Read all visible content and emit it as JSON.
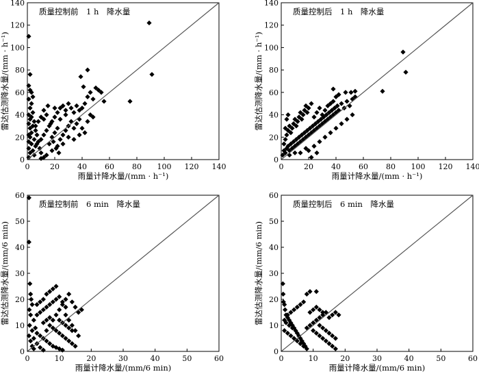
{
  "chart_data": [
    {
      "type": "scatter",
      "title": "质量控制前　1 h　降水量",
      "xlabel": "雨量计降水量/(mm · h⁻¹)",
      "ylabel": "雷达估测降水量/(mm · h⁻¹)",
      "xlim": [
        0,
        140
      ],
      "ylim": [
        0,
        140
      ],
      "xticks": [
        "0",
        "20",
        "40",
        "60",
        "80",
        "100",
        "120",
        "140"
      ],
      "yticks": [
        "0",
        "20",
        "40",
        "60",
        "80",
        "100",
        "120",
        "140"
      ],
      "reference_line": "y = x",
      "points": [
        [
          1,
          110
        ],
        [
          2,
          76
        ],
        [
          1,
          66
        ],
        [
          2,
          62
        ],
        [
          1,
          54
        ],
        [
          3,
          50
        ],
        [
          2,
          46
        ],
        [
          4,
          42
        ],
        [
          1,
          40
        ],
        [
          3,
          38
        ],
        [
          2,
          36
        ],
        [
          5,
          34
        ],
        [
          1,
          32
        ],
        [
          4,
          30
        ],
        [
          2,
          28
        ],
        [
          6,
          26
        ],
        [
          3,
          24
        ],
        [
          1,
          22
        ],
        [
          7,
          22
        ],
        [
          2,
          20
        ],
        [
          5,
          18
        ],
        [
          1,
          16
        ],
        [
          8,
          16
        ],
        [
          3,
          14
        ],
        [
          6,
          12
        ],
        [
          1,
          10
        ],
        [
          9,
          10
        ],
        [
          4,
          8
        ],
        [
          2,
          6
        ],
        [
          10,
          6
        ],
        [
          5,
          4
        ],
        [
          1,
          2
        ],
        [
          12,
          2
        ],
        [
          7,
          14
        ],
        [
          10,
          18
        ],
        [
          12,
          22
        ],
        [
          14,
          26
        ],
        [
          16,
          30
        ],
        [
          18,
          34
        ],
        [
          20,
          38
        ],
        [
          22,
          42
        ],
        [
          24,
          46
        ],
        [
          26,
          48
        ],
        [
          28,
          44
        ],
        [
          30,
          50
        ],
        [
          32,
          46
        ],
        [
          34,
          42
        ],
        [
          36,
          48
        ],
        [
          38,
          44
        ],
        [
          40,
          46
        ],
        [
          42,
          50
        ],
        [
          44,
          56
        ],
        [
          46,
          60
        ],
        [
          48,
          54
        ],
        [
          50,
          64
        ],
        [
          52,
          62
        ],
        [
          54,
          60
        ],
        [
          56,
          52
        ],
        [
          16,
          14
        ],
        [
          18,
          20
        ],
        [
          20,
          24
        ],
        [
          22,
          28
        ],
        [
          24,
          18
        ],
        [
          26,
          22
        ],
        [
          28,
          26
        ],
        [
          30,
          30
        ],
        [
          32,
          34
        ],
        [
          34,
          28
        ],
        [
          36,
          32
        ],
        [
          38,
          36
        ],
        [
          40,
          28
        ],
        [
          42,
          24
        ],
        [
          44,
          34
        ],
        [
          46,
          40
        ],
        [
          48,
          38
        ],
        [
          12,
          36
        ],
        [
          14,
          40
        ],
        [
          20,
          46
        ],
        [
          24,
          36
        ],
        [
          28,
          40
        ],
        [
          39,
          74
        ],
        [
          44,
          80
        ],
        [
          41,
          65
        ],
        [
          75,
          52
        ],
        [
          89,
          122
        ],
        [
          91,
          76
        ],
        [
          10,
          1
        ],
        [
          14,
          4
        ],
        [
          18,
          8
        ],
        [
          22,
          12
        ],
        [
          26,
          14
        ],
        [
          30,
          20
        ],
        [
          34,
          18
        ],
        [
          38,
          22
        ],
        [
          6,
          30
        ],
        [
          8,
          34
        ],
        [
          10,
          38
        ],
        [
          12,
          44
        ],
        [
          15,
          48
        ],
        [
          17,
          32
        ],
        [
          19,
          16
        ],
        [
          21,
          10
        ],
        [
          23,
          6
        ],
        [
          3,
          60
        ],
        [
          4,
          56
        ]
      ]
    },
    {
      "type": "scatter",
      "title": "质量控制后　1 h　降水量",
      "xlabel": "雨量计降水量/(mm · h⁻¹)",
      "ylabel": "雷达估测降水量/(mm · h⁻¹)",
      "xlim": [
        0,
        140
      ],
      "ylim": [
        0,
        140
      ],
      "xticks": [
        "0",
        "20",
        "40",
        "60",
        "80",
        "100",
        "120",
        "140"
      ],
      "yticks": [
        "0",
        "20",
        "40",
        "60",
        "80",
        "100",
        "120",
        "140"
      ],
      "reference_line": "y = x",
      "points": [
        [
          1,
          4
        ],
        [
          2,
          8
        ],
        [
          3,
          6
        ],
        [
          4,
          10
        ],
        [
          5,
          12
        ],
        [
          6,
          8
        ],
        [
          7,
          14
        ],
        [
          8,
          10
        ],
        [
          9,
          16
        ],
        [
          10,
          12
        ],
        [
          11,
          18
        ],
        [
          12,
          14
        ],
        [
          13,
          20
        ],
        [
          14,
          16
        ],
        [
          15,
          22
        ],
        [
          16,
          18
        ],
        [
          17,
          24
        ],
        [
          18,
          20
        ],
        [
          19,
          26
        ],
        [
          20,
          22
        ],
        [
          21,
          28
        ],
        [
          22,
          24
        ],
        [
          23,
          30
        ],
        [
          24,
          26
        ],
        [
          25,
          32
        ],
        [
          26,
          28
        ],
        [
          27,
          34
        ],
        [
          28,
          30
        ],
        [
          29,
          36
        ],
        [
          30,
          32
        ],
        [
          31,
          38
        ],
        [
          32,
          34
        ],
        [
          33,
          40
        ],
        [
          34,
          36
        ],
        [
          35,
          42
        ],
        [
          36,
          38
        ],
        [
          37,
          44
        ],
        [
          38,
          40
        ],
        [
          39,
          46
        ],
        [
          40,
          42
        ],
        [
          41,
          48
        ],
        [
          42,
          44
        ],
        [
          44,
          50
        ],
        [
          46,
          46
        ],
        [
          48,
          52
        ],
        [
          50,
          48
        ],
        [
          52,
          54
        ],
        [
          54,
          56
        ],
        [
          2,
          14
        ],
        [
          3,
          18
        ],
        [
          4,
          22
        ],
        [
          5,
          26
        ],
        [
          6,
          30
        ],
        [
          7,
          24
        ],
        [
          8,
          28
        ],
        [
          9,
          32
        ],
        [
          10,
          36
        ],
        [
          11,
          30
        ],
        [
          12,
          34
        ],
        [
          13,
          38
        ],
        [
          14,
          42
        ],
        [
          15,
          36
        ],
        [
          16,
          40
        ],
        [
          17,
          44
        ],
        [
          18,
          48
        ],
        [
          19,
          42
        ],
        [
          20,
          46
        ],
        [
          22,
          50
        ],
        [
          24,
          38
        ],
        [
          26,
          42
        ],
        [
          28,
          46
        ],
        [
          30,
          40
        ],
        [
          32,
          44
        ],
        [
          34,
          48
        ],
        [
          36,
          50
        ],
        [
          38,
          52
        ],
        [
          40,
          56
        ],
        [
          42,
          58
        ],
        [
          38,
          63
        ],
        [
          47,
          60
        ],
        [
          51,
          60
        ],
        [
          54,
          61
        ],
        [
          20,
          8
        ],
        [
          24,
          12
        ],
        [
          28,
          16
        ],
        [
          32,
          20
        ],
        [
          36,
          24
        ],
        [
          40,
          28
        ],
        [
          44,
          32
        ],
        [
          48,
          36
        ],
        [
          52,
          40
        ],
        [
          14,
          6
        ],
        [
          18,
          10
        ],
        [
          6,
          4
        ],
        [
          10,
          6
        ],
        [
          74,
          61
        ],
        [
          89,
          96
        ],
        [
          91,
          78
        ],
        [
          4,
          36
        ],
        [
          3,
          28
        ],
        [
          5,
          40
        ],
        [
          22,
          2
        ],
        [
          26,
          6
        ]
      ]
    },
    {
      "type": "scatter",
      "title": "质量控制前　6 min　降水量",
      "xlabel": "雨量计降水量/(mm/6 min)",
      "ylabel": "雷达估测降水量/(mm/6 min)",
      "xlim": [
        0,
        60
      ],
      "ylim": [
        0,
        60
      ],
      "xticks": [
        "0",
        "10",
        "20",
        "30",
        "40",
        "50",
        "60"
      ],
      "yticks": [
        "0",
        "10",
        "20",
        "30",
        "40",
        "50",
        "60"
      ],
      "reference_line": "y = x",
      "points": [
        [
          0.5,
          59
        ],
        [
          0.5,
          42
        ],
        [
          0.8,
          26
        ],
        [
          1,
          22
        ],
        [
          1.2,
          20
        ],
        [
          1.5,
          18
        ],
        [
          0.6,
          16
        ],
        [
          1,
          14
        ],
        [
          2,
          12
        ],
        [
          0.7,
          10
        ],
        [
          2.5,
          9
        ],
        [
          1.5,
          8
        ],
        [
          3,
          7
        ],
        [
          0.5,
          6
        ],
        [
          4,
          6
        ],
        [
          2,
          5
        ],
        [
          5,
          5
        ],
        [
          1,
          4
        ],
        [
          6,
          4
        ],
        [
          3,
          3
        ],
        [
          7,
          3
        ],
        [
          1.5,
          2
        ],
        [
          8,
          2
        ],
        [
          4,
          1.5
        ],
        [
          9,
          1.5
        ],
        [
          2,
          1
        ],
        [
          10,
          1
        ],
        [
          5,
          0.5
        ],
        [
          11,
          0.5
        ],
        [
          6,
          8
        ],
        [
          7,
          10
        ],
        [
          8,
          12
        ],
        [
          9,
          14
        ],
        [
          10,
          16
        ],
        [
          11,
          18
        ],
        [
          12,
          20
        ],
        [
          13,
          22
        ],
        [
          14,
          19
        ],
        [
          15,
          17
        ],
        [
          16,
          15
        ],
        [
          17,
          16
        ],
        [
          12,
          14
        ],
        [
          13,
          12
        ],
        [
          14,
          10
        ],
        [
          15,
          8
        ],
        [
          16,
          6
        ],
        [
          6,
          22
        ],
        [
          7,
          23
        ],
        [
          8,
          24
        ],
        [
          9,
          25
        ],
        [
          10,
          21
        ],
        [
          11,
          19
        ],
        [
          12,
          17
        ],
        [
          5,
          20
        ],
        [
          4,
          19
        ],
        [
          3,
          18
        ],
        [
          5,
          11
        ],
        [
          6,
          12
        ],
        [
          7,
          13
        ],
        [
          8,
          9
        ],
        [
          9,
          8
        ],
        [
          10,
          7
        ],
        [
          11,
          6
        ],
        [
          12,
          5
        ],
        [
          13,
          4
        ],
        [
          14,
          3
        ],
        [
          15,
          2
        ],
        [
          3,
          14
        ],
        [
          4,
          15
        ],
        [
          5,
          16
        ],
        [
          6,
          17
        ],
        [
          7,
          18
        ],
        [
          8,
          19
        ],
        [
          9,
          20
        ],
        [
          10,
          12
        ],
        [
          11,
          11
        ],
        [
          12,
          10
        ],
        [
          13,
          9
        ],
        [
          14,
          8
        ]
      ]
    },
    {
      "type": "scatter",
      "title": "质量控制后　6 min　降水量",
      "xlabel": "雨量计降水量/(mm/6 min)",
      "ylabel": "雷达估测降水量/(mm/6 min)",
      "xlim": [
        0,
        60
      ],
      "ylim": [
        0,
        60
      ],
      "xticks": [
        "0",
        "10",
        "20",
        "30",
        "40",
        "50",
        "60"
      ],
      "yticks": [
        "0",
        "10",
        "20",
        "30",
        "40",
        "50",
        "60"
      ],
      "reference_line": "y = x",
      "points": [
        [
          0.5,
          26
        ],
        [
          0.6,
          22
        ],
        [
          0.7,
          19
        ],
        [
          1,
          18
        ],
        [
          1.2,
          16
        ],
        [
          1.5,
          14
        ],
        [
          2,
          13
        ],
        [
          2.5,
          12
        ],
        [
          3,
          11
        ],
        [
          3.5,
          10
        ],
        [
          4,
          9
        ],
        [
          4.5,
          8
        ],
        [
          5,
          7
        ],
        [
          5.5,
          6
        ],
        [
          6,
          5
        ],
        [
          6.5,
          4
        ],
        [
          7,
          3
        ],
        [
          7.5,
          2
        ],
        [
          8,
          1
        ],
        [
          1,
          8
        ],
        [
          2,
          7
        ],
        [
          3,
          6
        ],
        [
          4,
          5
        ],
        [
          5,
          4
        ],
        [
          6,
          3
        ],
        [
          7,
          2
        ],
        [
          8,
          9
        ],
        [
          9,
          10
        ],
        [
          10,
          11
        ],
        [
          11,
          12
        ],
        [
          12,
          13
        ],
        [
          13,
          14
        ],
        [
          14,
          15
        ],
        [
          15,
          13
        ],
        [
          16,
          14
        ],
        [
          17,
          15
        ],
        [
          18,
          14
        ],
        [
          12,
          10
        ],
        [
          13,
          9
        ],
        [
          14,
          8
        ],
        [
          15,
          7
        ],
        [
          16,
          6
        ],
        [
          17,
          5
        ],
        [
          9,
          15
        ],
        [
          10,
          16
        ],
        [
          11,
          17
        ],
        [
          12,
          16
        ],
        [
          13,
          15
        ],
        [
          9,
          23
        ],
        [
          11,
          23
        ],
        [
          8,
          22
        ],
        [
          7,
          19
        ],
        [
          6,
          18
        ],
        [
          5,
          17
        ],
        [
          4,
          16
        ],
        [
          3,
          15
        ],
        [
          2,
          14
        ],
        [
          1,
          12
        ],
        [
          1.5,
          11
        ],
        [
          2.5,
          10
        ],
        [
          3.5,
          9
        ],
        [
          10,
          8
        ],
        [
          11,
          7
        ],
        [
          12,
          6
        ],
        [
          13,
          5
        ],
        [
          14,
          4
        ],
        [
          15,
          3
        ],
        [
          16,
          2
        ],
        [
          17,
          1
        ]
      ]
    }
  ]
}
